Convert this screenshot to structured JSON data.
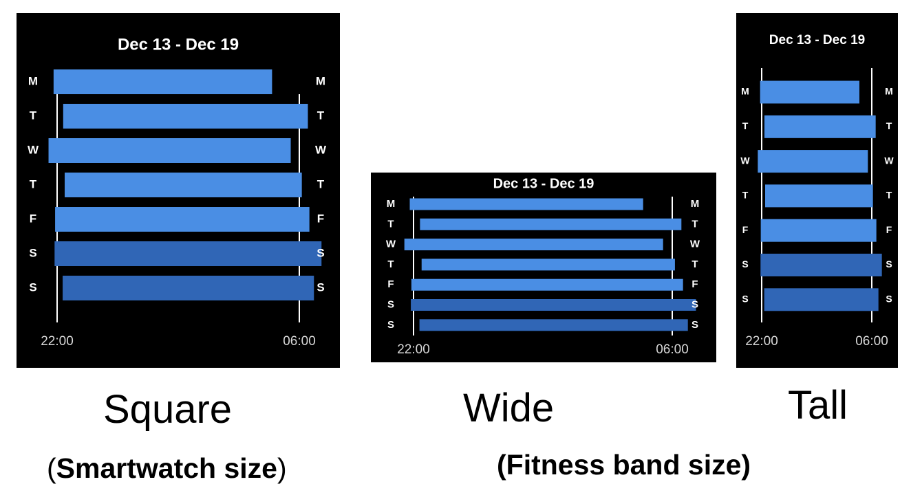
{
  "chart_data": [
    {
      "type": "bar",
      "subtype": "floating-horizontal",
      "variant": "square",
      "title": "Dec 13 - Dec 19",
      "categories": [
        "M",
        "T",
        "W",
        "T",
        "F",
        "S",
        "S"
      ],
      "x_tick_labels": [
        "22:00",
        "06:00"
      ],
      "xlim": [
        "22:00",
        "06:00"
      ],
      "series": [
        {
          "start": [
            "21:53",
            "22:12",
            "21:43",
            "22:15",
            "21:56",
            "21:55",
            "22:11"
          ],
          "end": [
            "05:06",
            "06:17",
            "05:43",
            "06:05",
            "06:20",
            "06:44",
            "06:29"
          ]
        }
      ]
    },
    {
      "type": "bar",
      "subtype": "floating-horizontal",
      "variant": "wide",
      "title": "Dec 13 - Dec 19",
      "categories": [
        "M",
        "T",
        "W",
        "T",
        "F",
        "S",
        "S"
      ],
      "x_tick_labels": [
        "22:00",
        "06:00"
      ],
      "xlim": [
        "22:00",
        "06:00"
      ],
      "series": [
        {
          "start": [
            "21:53",
            "22:12",
            "21:43",
            "22:15",
            "21:56",
            "21:55",
            "22:11"
          ],
          "end": [
            "05:06",
            "06:17",
            "05:43",
            "06:05",
            "06:20",
            "06:44",
            "06:29"
          ]
        }
      ]
    },
    {
      "type": "bar",
      "subtype": "floating-horizontal",
      "variant": "tall",
      "title": "Dec 13 - Dec 19",
      "categories": [
        "M",
        "T",
        "W",
        "T",
        "F",
        "S",
        "S"
      ],
      "x_tick_labels": [
        "22:00",
        "06:00"
      ],
      "xlim": [
        "22:00",
        "06:00"
      ],
      "series": [
        {
          "start": [
            "21:53",
            "22:12",
            "21:43",
            "22:15",
            "21:56",
            "21:55",
            "22:11"
          ],
          "end": [
            "05:06",
            "06:17",
            "05:43",
            "06:05",
            "06:20",
            "06:44",
            "06:29"
          ]
        }
      ]
    }
  ],
  "colors": {
    "weekday_bar": "#4a8ee4",
    "weekend_bar": "#3066b6",
    "panel_background": "#000000",
    "text": "#ffffff",
    "tick_label": "#d8d8d8"
  },
  "captions": {
    "square": "Square",
    "wide": "Wide",
    "tall": "Tall",
    "smartwatch_open": "(",
    "smartwatch_label": "Smartwatch size",
    "smartwatch_close": ")",
    "fitness": "(Fitness band size)"
  }
}
